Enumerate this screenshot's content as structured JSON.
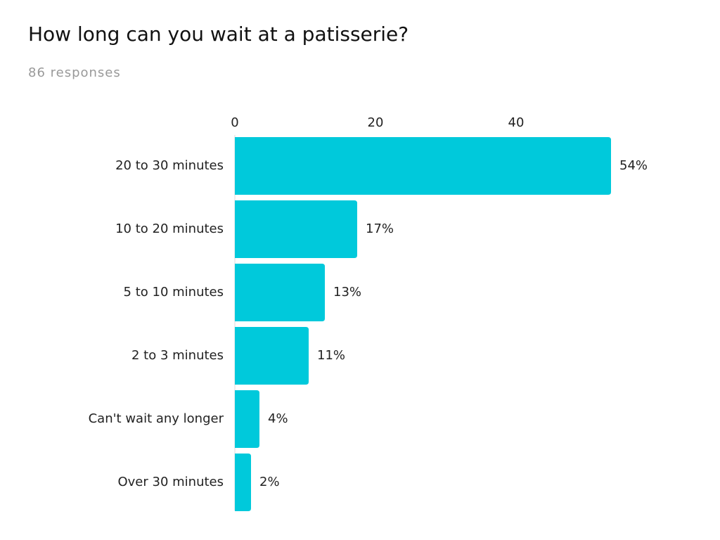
{
  "chart_data": {
    "type": "bar",
    "orientation": "horizontal",
    "title": "How long can you wait at a patisserie?",
    "subtitle": "86 responses",
    "categories": [
      "20 to 30 minutes",
      "10 to 20 minutes",
      "5 to 10 minutes",
      "2 to 3 minutes",
      "Can't wait any longer",
      "Over 30 minutes"
    ],
    "values": [
      53.5,
      17.4,
      12.8,
      10.5,
      3.5,
      2.3
    ],
    "value_labels": [
      "54%",
      "17%",
      "13%",
      "11%",
      "4%",
      "2%"
    ],
    "color": "#00c9db",
    "xlim": [
      0,
      60
    ],
    "xticks": [
      0,
      20,
      40
    ],
    "grid": false
  }
}
